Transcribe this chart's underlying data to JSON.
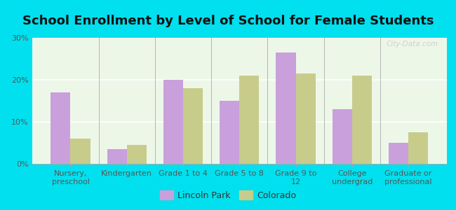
{
  "title": "School Enrollment by Level of School for Female Students",
  "categories": [
    "Nursery,\npreschool",
    "Kindergarten",
    "Grade 1 to 4",
    "Grade 5 to 8",
    "Grade 9 to\n12",
    "College\nundergrad",
    "Graduate or\nprofessional"
  ],
  "lincoln_park": [
    17.0,
    3.5,
    20.0,
    15.0,
    26.5,
    13.0,
    5.0
  ],
  "colorado": [
    6.0,
    4.5,
    18.0,
    21.0,
    21.5,
    21.0,
    7.5
  ],
  "lincoln_color": "#c9a0dc",
  "colorado_color": "#c8cc8a",
  "background_outer": "#00e0ee",
  "background_inner_tl": "#f0faf0",
  "background_inner_br": "#e8f5e0",
  "ylim": [
    0,
    30
  ],
  "yticks": [
    0,
    10,
    20,
    30
  ],
  "ytick_labels": [
    "0%",
    "10%",
    "20%",
    "30%"
  ],
  "bar_width": 0.35,
  "title_fontsize": 13,
  "tick_fontsize": 8,
  "legend_fontsize": 9,
  "watermark": "City-Data.com"
}
